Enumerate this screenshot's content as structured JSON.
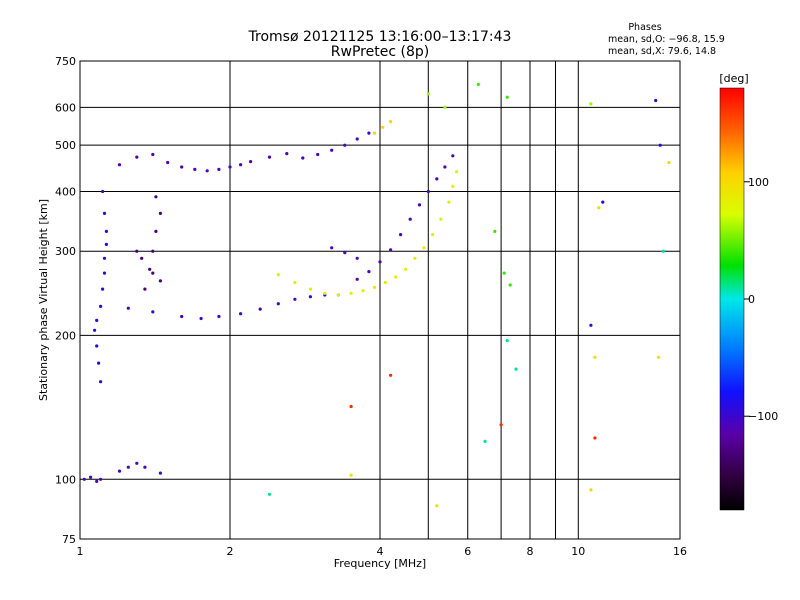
{
  "chart_data": {
    "type": "scatter",
    "title": "Tromsø 20121125 13:16:00–13:17:43",
    "subtitle": "RwPretec (8p)",
    "stats": {
      "heading": "Phases",
      "line_o": "mean, sd,O: −96.8, 15.9",
      "line_x": "mean, sd,X:  79.6, 14.8"
    },
    "xlabel": "Frequency [MHz]",
    "ylabel": "Stationary phase Virtual Height [km]",
    "x_scale": "log",
    "y_scale": "log",
    "xlim": [
      1,
      16
    ],
    "ylim": [
      75,
      750
    ],
    "x_ticks": [
      1,
      2,
      4,
      6,
      8,
      10,
      16
    ],
    "x_tick_labels": [
      "1",
      "2",
      "4",
      "6",
      "8",
      "10",
      "16"
    ],
    "y_ticks": [
      75,
      100,
      200,
      300,
      400,
      500,
      600,
      750
    ],
    "y_tick_labels": [
      "75",
      "100",
      "200",
      "300",
      "400",
      "500",
      "600",
      "750"
    ],
    "grid": true,
    "colorbar": {
      "label": "[deg]",
      "range": [
        -180,
        180
      ],
      "ticks": [
        100,
        0,
        -100
      ],
      "tick_labels": [
        "100",
        "0",
        "−100"
      ]
    },
    "traces": [
      {
        "name": "",
        "phase": -88,
        "points": [
          [
            1.1,
            160
          ],
          [
            1.09,
            175
          ],
          [
            1.08,
            190
          ],
          [
            1.07,
            205
          ],
          [
            1.08,
            215
          ],
          [
            1.1,
            230
          ],
          [
            1.11,
            250
          ],
          [
            1.12,
            270
          ],
          [
            1.12,
            290
          ],
          [
            1.13,
            310
          ],
          [
            1.13,
            330
          ],
          [
            1.12,
            360
          ],
          [
            1.11,
            400
          ]
        ]
      },
      {
        "name": "",
        "phase": -100,
        "points": [
          [
            1.25,
            228
          ],
          [
            1.4,
            224
          ],
          [
            1.6,
            219
          ],
          [
            1.75,
            217
          ],
          [
            1.9,
            219
          ],
          [
            2.1,
            222
          ],
          [
            2.3,
            227
          ],
          [
            2.5,
            233
          ],
          [
            2.7,
            238
          ],
          [
            2.9,
            241
          ],
          [
            3.1,
            243
          ],
          [
            3.3,
            243
          ]
        ]
      },
      {
        "name": "",
        "phase": -110,
        "points": [
          [
            1.2,
            455
          ],
          [
            1.3,
            472
          ],
          [
            1.4,
            478
          ],
          [
            1.5,
            460
          ],
          [
            1.6,
            450
          ],
          [
            1.7,
            445
          ],
          [
            1.8,
            442
          ],
          [
            1.9,
            445
          ],
          [
            2.0,
            450
          ],
          [
            2.1,
            455
          ],
          [
            2.2,
            462
          ],
          [
            2.4,
            472
          ],
          [
            2.6,
            480
          ]
        ]
      },
      {
        "name": "",
        "phase": -105,
        "points": [
          [
            2.8,
            470
          ],
          [
            3.0,
            478
          ],
          [
            3.2,
            488
          ],
          [
            3.4,
            500
          ],
          [
            3.6,
            515
          ],
          [
            3.8,
            530
          ]
        ]
      },
      {
        "name": "",
        "phase": -130,
        "points": [
          [
            1.35,
            250
          ],
          [
            1.38,
            275
          ],
          [
            1.4,
            300
          ],
          [
            1.42,
            330
          ],
          [
            1.45,
            360
          ],
          [
            1.42,
            390
          ],
          [
            1.3,
            300
          ],
          [
            1.33,
            290
          ],
          [
            1.4,
            270
          ],
          [
            1.45,
            260
          ]
        ]
      },
      {
        "name": "",
        "phase": -110,
        "points": [
          [
            3.6,
            262
          ],
          [
            3.8,
            272
          ],
          [
            4.0,
            285
          ],
          [
            4.2,
            302
          ],
          [
            4.4,
            325
          ],
          [
            4.6,
            350
          ],
          [
            4.8,
            375
          ],
          [
            5.0,
            400
          ],
          [
            5.2,
            425
          ],
          [
            5.4,
            450
          ],
          [
            5.6,
            475
          ]
        ]
      },
      {
        "name": "",
        "phase": -105,
        "points": [
          [
            3.2,
            305
          ],
          [
            3.4,
            298
          ],
          [
            3.6,
            290
          ]
        ]
      },
      {
        "name": "",
        "phase": 85,
        "points": [
          [
            2.5,
            268
          ],
          [
            2.7,
            258
          ],
          [
            2.9,
            250
          ],
          [
            3.1,
            245
          ],
          [
            3.3,
            243
          ],
          [
            3.5,
            245
          ],
          [
            3.7,
            248
          ],
          [
            3.9,
            252
          ],
          [
            4.1,
            258
          ],
          [
            4.3,
            265
          ],
          [
            4.5,
            275
          ],
          [
            4.7,
            290
          ],
          [
            4.9,
            305
          ],
          [
            5.1,
            325
          ],
          [
            5.3,
            350
          ],
          [
            5.5,
            380
          ],
          [
            5.6,
            410
          ],
          [
            5.7,
            440
          ]
        ]
      },
      {
        "name": "",
        "phase": 105,
        "points": [
          [
            3.9,
            530
          ],
          [
            4.05,
            545
          ],
          [
            4.2,
            560
          ]
        ]
      },
      {
        "name": "",
        "phase": -105,
        "points": [
          [
            1.02,
            100
          ],
          [
            1.05,
            101
          ],
          [
            1.08,
            99
          ],
          [
            1.1,
            100
          ],
          [
            1.2,
            104
          ],
          [
            1.25,
            106
          ],
          [
            1.3,
            108
          ],
          [
            1.35,
            106
          ],
          [
            1.45,
            103
          ]
        ]
      },
      {
        "name": "",
        "phase": -90,
        "points": [
          [
            10.6,
            210
          ],
          [
            11.2,
            380
          ],
          [
            14.3,
            620
          ],
          [
            14.6,
            500
          ]
        ]
      },
      {
        "name": "",
        "phase": 40,
        "points": [
          [
            6.3,
            670
          ],
          [
            7.2,
            630
          ],
          [
            6.8,
            330
          ],
          [
            7.1,
            270
          ],
          [
            7.3,
            255
          ]
        ]
      },
      {
        "name": "",
        "phase": 60,
        "points": [
          [
            5.0,
            640
          ],
          [
            5.4,
            600
          ],
          [
            10.6,
            610
          ]
        ]
      },
      {
        "name": "",
        "phase": 165,
        "points": [
          [
            3.5,
            142
          ],
          [
            4.2,
            165
          ],
          [
            7.0,
            130
          ],
          [
            10.8,
            122
          ]
        ]
      },
      {
        "name": "",
        "phase": 100,
        "points": [
          [
            3.5,
            102
          ],
          [
            5.2,
            88
          ],
          [
            10.6,
            95
          ],
          [
            10.8,
            180
          ],
          [
            11.0,
            370
          ],
          [
            14.5,
            180
          ],
          [
            15.2,
            460
          ]
        ]
      },
      {
        "name": "",
        "phase": 10,
        "points": [
          [
            2.4,
            93
          ],
          [
            6.5,
            120
          ],
          [
            7.2,
            195
          ],
          [
            7.5,
            170
          ],
          [
            14.8,
            300
          ]
        ]
      }
    ]
  }
}
